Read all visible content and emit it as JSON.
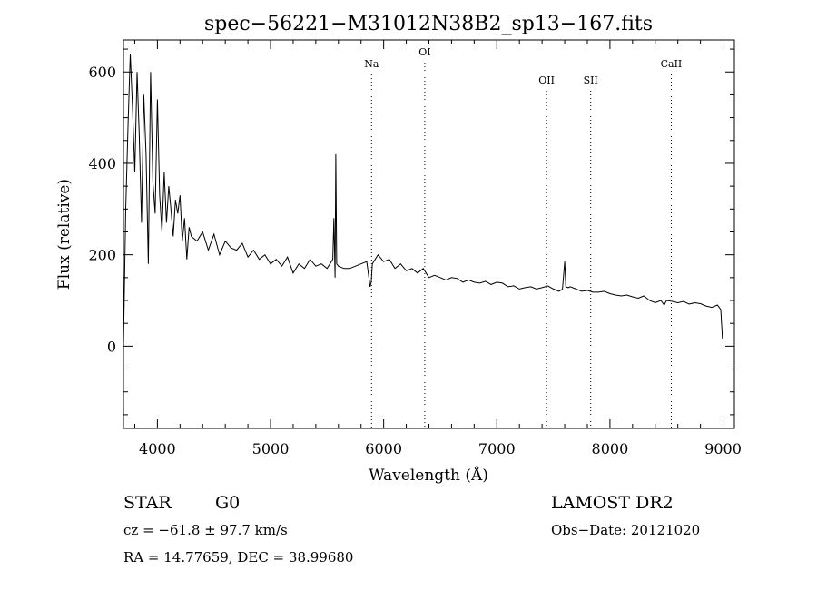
{
  "chart_data": {
    "type": "line",
    "title": "spec−56221−M31012N38B2_sp13−167.fits",
    "xlabel": "Wavelength (Å)",
    "ylabel": "Flux (relative)",
    "xlim": [
      3700,
      9100
    ],
    "ylim": [
      -180,
      670
    ],
    "xticks": [
      4000,
      5000,
      6000,
      7000,
      8000,
      9000
    ],
    "yticks": [
      0,
      200,
      400,
      600
    ],
    "grid": false,
    "series": [
      {
        "name": "flux",
        "x": [
          3700,
          3720,
          3740,
          3760,
          3780,
          3800,
          3820,
          3840,
          3860,
          3880,
          3900,
          3920,
          3940,
          3960,
          3980,
          4000,
          4020,
          4040,
          4060,
          4080,
          4100,
          4120,
          4140,
          4160,
          4180,
          4200,
          4220,
          4240,
          4260,
          4280,
          4300,
          4350,
          4400,
          4450,
          4500,
          4550,
          4600,
          4650,
          4700,
          4750,
          4800,
          4850,
          4900,
          4950,
          5000,
          5050,
          5100,
          5150,
          5200,
          5250,
          5300,
          5350,
          5400,
          5450,
          5500,
          5550,
          5560,
          5570,
          5577,
          5585,
          5600,
          5650,
          5700,
          5750,
          5800,
          5850,
          5880,
          5890,
          5900,
          5950,
          6000,
          6050,
          6100,
          6150,
          6200,
          6250,
          6300,
          6350,
          6400,
          6450,
          6500,
          6550,
          6600,
          6650,
          6700,
          6750,
          6800,
          6850,
          6900,
          6950,
          7000,
          7050,
          7100,
          7150,
          7200,
          7250,
          7300,
          7350,
          7400,
          7450,
          7500,
          7550,
          7580,
          7600,
          7610,
          7630,
          7650,
          7700,
          7750,
          7800,
          7850,
          7900,
          7950,
          8000,
          8050,
          8100,
          8150,
          8200,
          8250,
          8300,
          8350,
          8400,
          8450,
          8480,
          8500,
          8550,
          8600,
          8650,
          8700,
          8750,
          8800,
          8850,
          8900,
          8950,
          8980,
          8995
        ],
        "y": [
          0,
          300,
          480,
          640,
          520,
          380,
          600,
          460,
          270,
          550,
          420,
          180,
          600,
          360,
          290,
          540,
          330,
          250,
          380,
          270,
          350,
          300,
          240,
          320,
          290,
          330,
          230,
          280,
          190,
          260,
          240,
          230,
          250,
          210,
          245,
          200,
          230,
          215,
          210,
          225,
          195,
          210,
          190,
          200,
          180,
          190,
          175,
          195,
          160,
          180,
          170,
          190,
          175,
          180,
          170,
          190,
          280,
          150,
          420,
          180,
          175,
          170,
          170,
          175,
          180,
          185,
          130,
          140,
          180,
          200,
          185,
          190,
          170,
          180,
          165,
          170,
          160,
          170,
          150,
          155,
          150,
          145,
          150,
          148,
          140,
          145,
          140,
          138,
          142,
          135,
          140,
          138,
          130,
          132,
          125,
          128,
          130,
          125,
          128,
          132,
          125,
          120,
          125,
          185,
          130,
          128,
          130,
          125,
          120,
          122,
          118,
          118,
          120,
          115,
          112,
          110,
          112,
          108,
          105,
          110,
          100,
          95,
          100,
          90,
          100,
          98,
          95,
          98,
          92,
          95,
          93,
          88,
          85,
          90,
          80,
          15
        ]
      }
    ],
    "lines": [
      {
        "label": "Na",
        "x": 5893
      },
      {
        "label": "OI",
        "x": 6363
      },
      {
        "label": "OII",
        "x": 7440
      },
      {
        "label": "SII",
        "x": 7830
      },
      {
        "label": "CaII",
        "x": 8542
      }
    ]
  },
  "footer": {
    "object_class": "STAR",
    "subclass": "G0",
    "survey": "LAMOST DR2",
    "cz": "cz = −61.8 ± 97.7 km/s",
    "obs_date": "Obs−Date: 20121020",
    "coords": "RA =  14.77659, DEC =  38.99680"
  }
}
